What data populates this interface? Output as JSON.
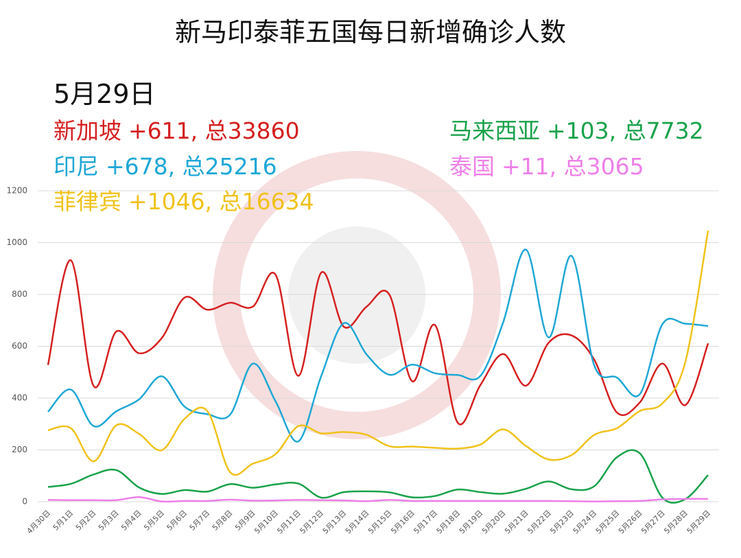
{
  "chart_data": {
    "type": "line",
    "title": "新马印泰菲五国每日新增确诊人数",
    "subtitle": "5月29日",
    "categories": [
      "4月30日",
      "5月1日",
      "5月2日",
      "5月3日",
      "5月4日",
      "5月5日",
      "5月6日",
      "5月7日",
      "5月8日",
      "5月9日",
      "5月10日",
      "5月11日",
      "5月12日",
      "5月13日",
      "5月14日",
      "5月15日",
      "5月16日",
      "5月17日",
      "5月18日",
      "5月19日",
      "5月20日",
      "5月21日",
      "5月22日",
      "5月23日",
      "5月24日",
      "5月25日",
      "5月26日",
      "5月27日",
      "5月28日",
      "5月29日"
    ],
    "series": [
      {
        "name": "新加坡",
        "summary": "+611, 总33860",
        "color": "#d61f1f",
        "values": [
          528,
          932,
          447,
          657,
          573,
          632,
          788,
          741,
          768,
          753,
          876,
          486,
          884,
          675,
          753,
          799,
          465,
          682,
          305,
          451,
          570,
          448,
          614,
          642,
          548,
          344,
          383,
          533,
          373,
          611
        ]
      },
      {
        "name": "印尼",
        "summary": "+678, 总25216",
        "color": "#1ea7d6",
        "values": [
          347,
          433,
          292,
          349,
          395,
          484,
          367,
          338,
          336,
          533,
          387,
          233,
          484,
          689,
          568,
          490,
          529,
          496,
          489,
          486,
          693,
          973,
          634,
          949,
          526,
          479,
          415,
          686,
          687,
          678
        ]
      },
      {
        "name": "菲律宾",
        "summary": "+1046, 总16634",
        "color": "#f0c21a",
        "values": [
          276,
          284,
          156,
          295,
          262,
          199,
          320,
          350,
          114,
          147,
          184,
          292,
          264,
          269,
          258,
          214,
          213,
          208,
          205,
          221,
          279,
          215,
          163,
          180,
          258,
          284,
          350,
          380,
          539,
          1046
        ]
      },
      {
        "name": "马来西亚",
        "summary": "+103, 总7732",
        "color": "#18a24a",
        "values": [
          57,
          69,
          105,
          122,
          55,
          30,
          45,
          39,
          68,
          54,
          67,
          70,
          16,
          37,
          40,
          36,
          17,
          22,
          47,
          37,
          31,
          50,
          78,
          48,
          60,
          172,
          187,
          15,
          10,
          103
        ]
      },
      {
        "name": "泰国",
        "summary": "+11, 总3065",
        "color": "#ee7fe8",
        "values": [
          7,
          6,
          6,
          6,
          18,
          1,
          3,
          3,
          8,
          4,
          5,
          7,
          6,
          5,
          2,
          7,
          3,
          3,
          3,
          3,
          3,
          3,
          3,
          2,
          1,
          2,
          3,
          9,
          11,
          11
        ]
      }
    ],
    "ylim": [
      0,
      1200
    ],
    "yticks": [
      0,
      200,
      400,
      600,
      800,
      1000,
      1200
    ],
    "grid": true
  }
}
